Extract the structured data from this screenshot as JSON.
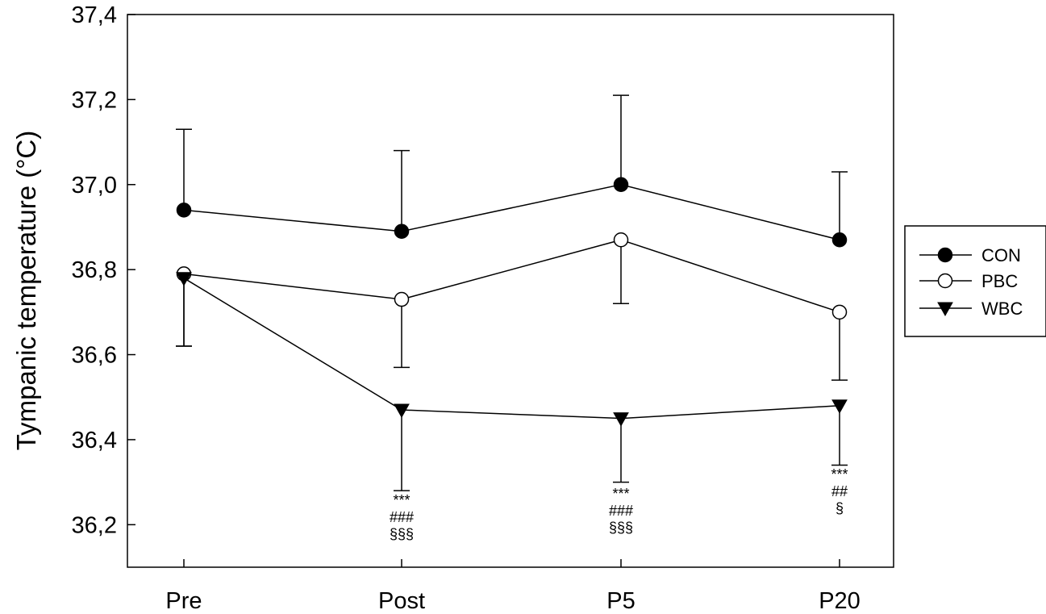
{
  "chart_data": {
    "type": "line",
    "ylabel": "Tympanic temperature (°C)",
    "xlabel": "",
    "categories": [
      "Pre",
      "Post",
      "P5",
      "P20"
    ],
    "ylim": [
      36.1,
      37.4
    ],
    "yticks": [
      "36,2",
      "36,4",
      "36,6",
      "36,8",
      "37,0",
      "37,2",
      "37,4"
    ],
    "ytick_values": [
      36.2,
      36.4,
      36.6,
      36.8,
      37.0,
      37.2,
      37.4
    ],
    "grid": false,
    "legend_position": "right",
    "series": [
      {
        "name": "CON",
        "marker": "filled-circle",
        "values": [
          36.94,
          36.89,
          37.0,
          36.87
        ],
        "errors": [
          0.19,
          0.19,
          0.21,
          0.16
        ],
        "error_direction": "up"
      },
      {
        "name": "PBC",
        "marker": "open-circle",
        "values": [
          36.79,
          36.73,
          36.87,
          36.7
        ],
        "errors": [
          0.17,
          0.16,
          0.15,
          0.16
        ],
        "error_direction": "down"
      },
      {
        "name": "WBC",
        "marker": "filled-triangle-down",
        "values": [
          36.78,
          36.47,
          36.45,
          36.48
        ],
        "errors": [
          0.16,
          0.19,
          0.15,
          0.14
        ],
        "error_direction": "down"
      }
    ],
    "annotations": [
      {
        "category": "Post",
        "lines": [
          "***",
          "###",
          "§§§"
        ]
      },
      {
        "category": "P5",
        "lines": [
          "***",
          "###",
          "§§§"
        ]
      },
      {
        "category": "P20",
        "lines": [
          "***",
          "##",
          "§"
        ]
      }
    ]
  }
}
